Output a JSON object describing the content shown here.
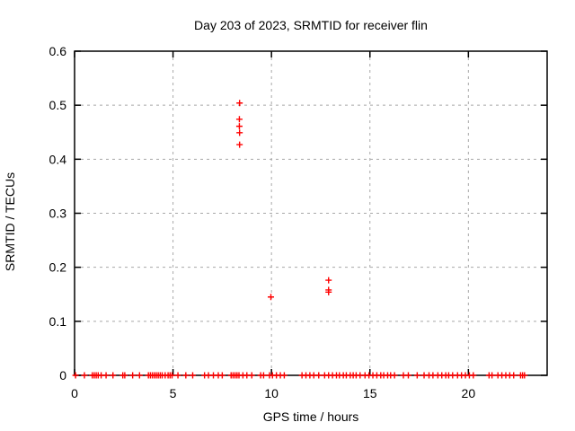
{
  "window": {
    "background": "#ffffff"
  },
  "chart_data": {
    "type": "scatter",
    "title": "Day 203 of 2023, SRMTID for receiver flin",
    "xlabel": "GPS time / hours",
    "ylabel": "SRMTID / TECUs",
    "xlim": [
      0,
      24
    ],
    "ylim": [
      0,
      0.6
    ],
    "xticks": [
      0,
      5,
      10,
      15,
      20
    ],
    "xtick_labels": [
      "0",
      "5",
      "10",
      "15",
      "20"
    ],
    "yticks": [
      0,
      0.1,
      0.2,
      0.3,
      0.4,
      0.5,
      0.6
    ],
    "ytick_labels": [
      "0",
      "0.1",
      "0.2",
      "0.3",
      "0.4",
      "0.5",
      "0.6"
    ],
    "grid": "dashed at every labeled tick",
    "legend": "none",
    "marker": "plus",
    "colors": {
      "marker": "#ff0000",
      "grid": "#a8a8a8",
      "axis": "#000000",
      "text": "#000000",
      "background": "#ffffff"
    },
    "series": [
      {
        "name": "SRMTID",
        "nonzero_points": [
          [
            8.38,
            0.504
          ],
          [
            8.37,
            0.474
          ],
          [
            8.37,
            0.461
          ],
          [
            8.38,
            0.449
          ],
          [
            8.38,
            0.427
          ],
          [
            9.97,
            0.145
          ],
          [
            12.9,
            0.176
          ],
          [
            12.9,
            0.158
          ],
          [
            12.9,
            0.154
          ]
        ],
        "zero_points_x": [
          0.05,
          0.5,
          0.9,
          1.0,
          1.1,
          1.2,
          1.35,
          1.6,
          1.95,
          2.45,
          2.55,
          2.95,
          3.3,
          3.75,
          3.85,
          3.95,
          4.05,
          4.15,
          4.25,
          4.35,
          4.45,
          4.6,
          4.75,
          4.85,
          4.95,
          5.25,
          5.65,
          6.0,
          6.6,
          6.8,
          7.05,
          7.3,
          7.5,
          7.95,
          8.05,
          8.15,
          8.25,
          8.35,
          8.55,
          8.75,
          9.0,
          9.45,
          9.6,
          9.9,
          10.05,
          10.25,
          10.45,
          10.65,
          11.55,
          11.75,
          11.95,
          12.15,
          12.4,
          12.7,
          12.9,
          13.1,
          13.3,
          13.45,
          13.65,
          13.8,
          14.0,
          14.15,
          14.3,
          14.5,
          14.75,
          14.95,
          15.15,
          15.35,
          15.55,
          15.7,
          15.9,
          16.05,
          16.25,
          16.7,
          16.95,
          17.4,
          17.75,
          18.0,
          18.2,
          18.45,
          18.65,
          18.85,
          19.0,
          19.2,
          19.45,
          19.65,
          19.85,
          20.05,
          20.25,
          21.05,
          21.2,
          21.5,
          21.7,
          21.9,
          22.1,
          22.3,
          22.65,
          22.75,
          22.85
        ]
      }
    ]
  }
}
